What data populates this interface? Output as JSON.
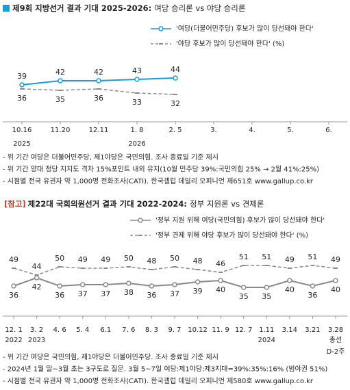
{
  "chart_data": [
    {
      "type": "line",
      "title": "제9회 지방선거 결과 기대 2025-2026:",
      "subtitle": "여당 승리론 vs 야당 승리론",
      "categories": [
        "10.16",
        "11.20",
        "12.11",
        "1. 8",
        "2. 5",
        "3.",
        "4.",
        "5.",
        "6."
      ],
      "x_sublabels": [
        "2025",
        null,
        null,
        "2026",
        null,
        null,
        null,
        null,
        null
      ],
      "ylim": [
        21,
        51
      ],
      "series": [
        {
          "name": "'여당(더불어민주당) 후보가 많이 당선돼야 한다'",
          "color": "#1a9ad6",
          "label_color": "#1a9ad6",
          "dash": false,
          "label_position": "above",
          "values": [
            39,
            42,
            42,
            43,
            44,
            null,
            null,
            null,
            null
          ]
        },
        {
          "name": "'야당 후보가 많이 당선돼야 한다' (%)",
          "color": "#888888",
          "label_color": "#a23a32",
          "dash": true,
          "label_position": "below",
          "values": [
            36,
            35,
            36,
            33,
            32,
            null,
            null,
            null,
            null
          ]
        }
      ],
      "notes": [
        {
          "text": "- 위 기간 여당은 더불어민주당, 제1야당은 국민의힘. 조사 종료일 기준 제시",
          "color": "#222222"
        },
        {
          "text": "- 위 기간 양대 정당 지지도 격차 15%포인트 내외 유지(10월 민주당 39%:국민의힘 25% → 2월 41%:25%)",
          "color": "#1a9ad6"
        },
        {
          "text": "- 시점별 전국 유권자 약 1,000명 전화조사(CATI). 한국갤럽 데일리 오피니언 제651호 www.gallup.co.kr",
          "color": "#222222"
        }
      ]
    },
    {
      "type": "line",
      "prefix": "[참고]",
      "title": "제22대 국회의원선거 결과 기대 2022-2024:",
      "subtitle": "정부 지원론 vs 견제론",
      "categories": [
        "12. 1",
        "3. 2",
        "4. 6",
        "5. 4",
        "6.1",
        "7. 6",
        "8. 3",
        "9. 7",
        "10.12",
        "11. 9",
        "12. 7",
        "1.11",
        "3.14",
        "3.21",
        "3.28"
      ],
      "x_sublabels": [
        "2022",
        "2023",
        null,
        null,
        null,
        null,
        null,
        null,
        null,
        null,
        null,
        "2024",
        null,
        null,
        "총선"
      ],
      "x_sublabels2": [
        null,
        null,
        null,
        null,
        null,
        null,
        null,
        null,
        null,
        null,
        null,
        null,
        null,
        null,
        "D-2주"
      ],
      "ylim": [
        25,
        55
      ],
      "series": [
        {
          "name": "'정부 지원 위해 여당(국민의힘) 후보가 많이 당선돼야 한다'",
          "color": "#888888",
          "label_color": "#555555",
          "dash": false,
          "label_position": "below",
          "values": [
            36,
            42,
            36,
            37,
            37,
            38,
            36,
            37,
            39,
            40,
            35,
            35,
            40,
            36,
            40
          ]
        },
        {
          "name": "'정부 견제 위해 야당 후보가 많이 당선돼야 한다' (%)",
          "color": "#888888",
          "label_color": "#1a9ad6",
          "dash": true,
          "label_position": "above",
          "values": [
            49,
            44,
            50,
            49,
            49,
            50,
            48,
            50,
            48,
            46,
            51,
            51,
            49,
            51,
            49
          ]
        }
      ],
      "notes": [
        {
          "text": "- 위 기간 여당은 국민의힘, 제1야당은 더불어민주당. 조사 종료일 기준 제시",
          "color": "#222222"
        },
        {
          "text": "- 2024년 1월 말~3월 초는 3구도로 질문. 3월 5~7일 여당:제1야당:제3지대=39%:35%:16% (범야권 51%)",
          "color": "#1a9ad6"
        },
        {
          "text": "- 시점별 전국 유권자 약 1,000명 전화조사(CATI). 한국갤럽 데일리 오피니언 제580호 www.gallup.co.kr",
          "color": "#222222"
        }
      ]
    }
  ]
}
